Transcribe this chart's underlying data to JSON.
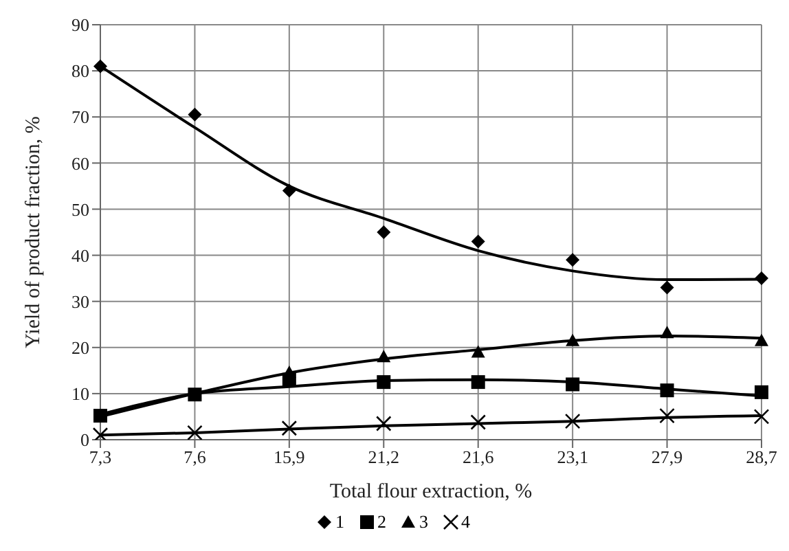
{
  "chart_data": {
    "type": "scatter",
    "xlabel": "Total flour extraction, %",
    "ylabel": "Yield of product fraction, %",
    "categories": [
      "7,3",
      "7,6",
      "15,9",
      "21,2",
      "21,6",
      "23,1",
      "27,9",
      "28,7"
    ],
    "ylim": [
      0,
      90
    ],
    "yticks": [
      0,
      10,
      20,
      30,
      40,
      50,
      60,
      70,
      80,
      90
    ],
    "grid": true,
    "legend": "bottom",
    "series": [
      {
        "name": "1",
        "color": "#000000",
        "marker": "diamond",
        "values": [
          81,
          70.5,
          54,
          45,
          43,
          39,
          33,
          35
        ]
      },
      {
        "name": "2",
        "color": "#000000",
        "marker": "square",
        "values": [
          5.2,
          9.8,
          13,
          12.5,
          12.5,
          12,
          10.7,
          10.3
        ]
      },
      {
        "name": "3",
        "color": "#000000",
        "marker": "triangle",
        "values": [
          null,
          null,
          14.6,
          18,
          19,
          21.5,
          23.2,
          21.5
        ]
      },
      {
        "name": "4",
        "color": "#000000",
        "marker": "cross",
        "values": [
          1,
          1.5,
          2.5,
          3.5,
          3.8,
          4,
          5.2,
          5
        ]
      },
      {
        "type": "line",
        "color": "#000000",
        "marker": "none",
        "values": [
          81,
          67.7,
          55,
          48,
          41,
          36.6,
          34.7,
          34.8
        ]
      },
      {
        "type": "line",
        "color": "#000000",
        "marker": "none",
        "values": [
          5.5,
          10,
          11.5,
          12.8,
          13,
          12.5,
          11,
          9.5
        ]
      },
      {
        "type": "line",
        "color": "#000000",
        "marker": "none",
        "values": [
          5,
          10,
          14.5,
          17.5,
          19.5,
          21.5,
          22.5,
          22
        ]
      },
      {
        "type": "line",
        "color": "#000000",
        "marker": "none",
        "values": [
          1,
          1.5,
          2.3,
          3,
          3.5,
          4,
          4.8,
          5.2
        ]
      }
    ]
  }
}
